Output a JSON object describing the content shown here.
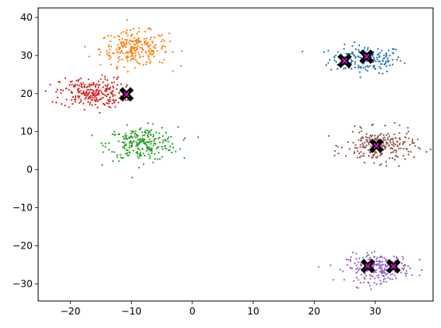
{
  "chart_data": {
    "type": "scatter",
    "title": "",
    "xlabel": "",
    "ylabel": "",
    "xlim": [
      -25.3,
      39.5
    ],
    "ylim": [
      -34.5,
      42.5
    ],
    "x_ticks": [
      -20,
      -10,
      0,
      10,
      20,
      30
    ],
    "y_ticks": [
      -30,
      -20,
      -10,
      0,
      10,
      20,
      30,
      40
    ],
    "grid": false,
    "legend": "none",
    "clusters": [
      {
        "color": "#1f77b4",
        "center": [
          28.5,
          29.0
        ],
        "spread": [
          3.0,
          1.8
        ],
        "count": 180
      },
      {
        "color": "#ff7f0e",
        "center": [
          -9.5,
          31.8
        ],
        "spread": [
          2.8,
          2.3
        ],
        "count": 250
      },
      {
        "color": "#2ca02c",
        "center": [
          -8.2,
          6.8
        ],
        "spread": [
          2.9,
          2.2
        ],
        "count": 250
      },
      {
        "color": "#d62728",
        "center": [
          -16.5,
          20.2
        ],
        "spread": [
          2.6,
          2.0
        ],
        "count": 250
      },
      {
        "color": "#9467bd",
        "center": [
          30.5,
          -25.8
        ],
        "spread": [
          2.6,
          1.8
        ],
        "count": 250
      },
      {
        "color": "#8c564b",
        "center": [
          30.8,
          6.2
        ],
        "spread": [
          2.8,
          2.1
        ],
        "count": 250
      }
    ],
    "centroids": [
      [
        25.0,
        28.6
      ],
      [
        28.6,
        29.7
      ],
      [
        -10.8,
        19.8
      ],
      [
        30.2,
        6.3
      ],
      [
        28.8,
        -25.3
      ],
      [
        33.0,
        -25.4
      ]
    ],
    "centroid_style": {
      "marker": "X",
      "fill": "#cc11cc",
      "edge": "#000000"
    }
  }
}
